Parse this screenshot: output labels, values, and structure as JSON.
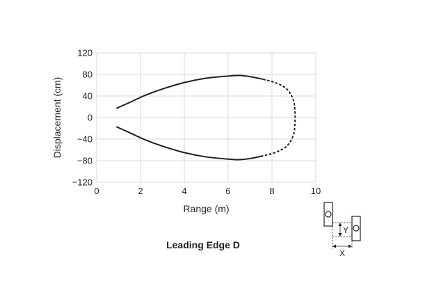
{
  "chart_data": {
    "type": "line",
    "title": "Leading Edge D",
    "xlabel": "Range (m)",
    "ylabel": "Displacement (cm)",
    "xlim": [
      0,
      10
    ],
    "ylim": [
      -120,
      120
    ],
    "xticks": [
      "0",
      "2",
      "4",
      "6",
      "8",
      "10"
    ],
    "yticks": [
      "120",
      "80",
      "40",
      "0",
      "−40",
      "−80",
      "−120"
    ],
    "grid": true,
    "series": [
      {
        "style": "solid",
        "x": [
          0.9,
          1.5,
          2.2,
          3.0,
          4.0,
          5.0,
          6.0,
          6.5,
          7.0,
          7.6
        ],
        "y": [
          17,
          28,
          41,
          53,
          65,
          73,
          77,
          78,
          76,
          71
        ]
      },
      {
        "style": "dashed",
        "x": [
          7.6,
          8.2,
          8.7,
          8.98,
          9.05,
          9.05,
          8.98,
          8.7,
          8.2,
          7.6
        ],
        "y": [
          71,
          64,
          52,
          32,
          10,
          -10,
          -32,
          -52,
          -64,
          -71
        ]
      },
      {
        "style": "solid",
        "x": [
          7.6,
          7.0,
          6.5,
          6.0,
          5.0,
          4.0,
          3.0,
          2.2,
          1.5,
          0.9
        ],
        "y": [
          -71,
          -76,
          -78,
          -77,
          -73,
          -65,
          -53,
          -41,
          -28,
          -17
        ]
      }
    ]
  },
  "inset": {
    "y_label": "Y",
    "x_label": "X"
  }
}
